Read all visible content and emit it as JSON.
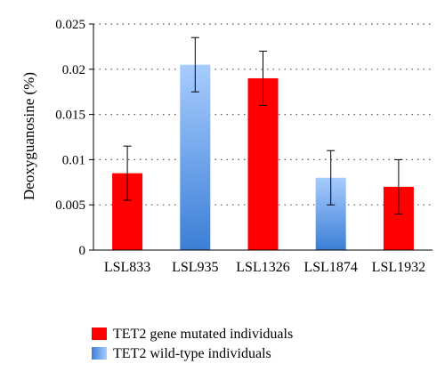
{
  "chart_data": {
    "type": "bar",
    "title": "",
    "xlabel": "",
    "ylabel": "Deoxyguanosine (%)",
    "ylim": [
      0,
      0.025
    ],
    "yticks": [
      "0",
      "0.005",
      "0.01",
      "0.015",
      "0.02",
      "0.025"
    ],
    "ytick_values": [
      0,
      0.005,
      0.01,
      0.015,
      0.02,
      0.025
    ],
    "grid": "horizontal dotted",
    "legend_position": "bottom-left",
    "categories": [
      "LSL833",
      "LSL935",
      "LSL1326",
      "LSL1874",
      "LSL1932"
    ],
    "values": [
      0.0085,
      0.0205,
      0.019,
      0.008,
      0.007
    ],
    "errors": [
      0.003,
      0.003,
      0.003,
      0.003,
      0.003
    ],
    "groups": [
      "mutated",
      "wildtype",
      "mutated",
      "wildtype",
      "mutated"
    ],
    "legend": [
      {
        "key": "mutated",
        "label": "TET2 gene mutated individuals",
        "color": "#ff0000"
      },
      {
        "key": "wildtype",
        "label": "TET2 wild-type individuals",
        "color_top": "#a8ccff",
        "color_bottom": "#3b7fd6"
      }
    ]
  }
}
